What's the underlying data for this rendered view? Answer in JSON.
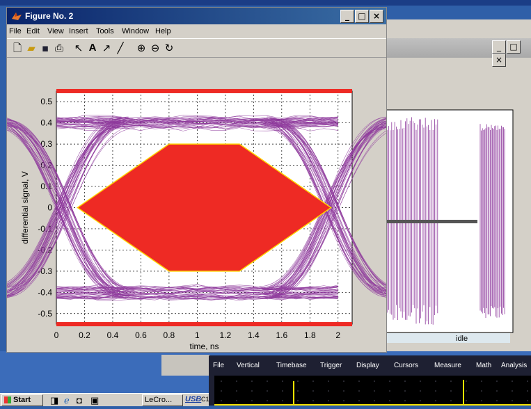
{
  "figure_window": {
    "title": "Figure No. 2",
    "menu": [
      "File",
      "Edit",
      "View",
      "Insert",
      "Tools",
      "Window",
      "Help"
    ],
    "toolbar_icons": [
      "new-file-icon",
      "open-folder-icon",
      "save-icon",
      "print-icon",
      "select-arrow-icon",
      "text-insert-icon",
      "arrow-insert-icon",
      "line-insert-icon",
      "zoom-in-icon",
      "zoom-out-icon",
      "rotate-icon"
    ]
  },
  "window_controls": {
    "minimize": "_",
    "maximize": "□",
    "close": "×"
  },
  "chart_data": {
    "type": "line",
    "title": "",
    "xlabel": "time, ns",
    "ylabel": "differential signal, V",
    "xlim": [
      0,
      2.1
    ],
    "ylim": [
      -0.55,
      0.55
    ],
    "x_ticks": [
      0,
      0.2,
      0.4,
      0.6,
      0.8,
      1,
      1.2,
      1.4,
      1.6,
      1.8,
      2
    ],
    "x_tick_labels": [
      "0",
      "0.2",
      "0.4",
      "0.6",
      "0.8",
      "1",
      "1.2",
      "1.4",
      "1.6",
      "1.8",
      "2"
    ],
    "y_ticks": [
      0.5,
      0.4,
      0.3,
      0.2,
      0.1,
      0,
      -0.1,
      -0.2,
      -0.3,
      -0.4,
      -0.5
    ],
    "y_tick_labels": [
      "0.5",
      "0.4",
      "0.3",
      "0.2",
      "0.1",
      "0",
      "-0.1",
      "-0.2",
      "-0.3",
      "-0.4",
      "-0.5"
    ],
    "grid": true,
    "mask_polygon": [
      [
        0.15,
        0
      ],
      [
        0.8,
        0.3
      ],
      [
        1.3,
        0.3
      ],
      [
        1.95,
        0
      ],
      [
        1.3,
        -0.3
      ],
      [
        0.8,
        -0.3
      ]
    ],
    "mask_bars": [
      0.56,
      -0.56
    ],
    "eye_levels": [
      0.4,
      -0.4
    ],
    "colors": {
      "trace": "#8e3a9c",
      "mask": "#ee2a24",
      "mask_edge": "#ffd200"
    }
  },
  "background_app": {
    "label_idle": "idle",
    "window_controls": [
      "_",
      "□",
      "×"
    ]
  },
  "scope_menu": [
    "File",
    "Vertical",
    "Timebase",
    "Trigger",
    "Display",
    "Cursors",
    "Measure",
    "Math",
    "Analysis"
  ],
  "taskbar": {
    "start_label": "Start",
    "items": [
      "LeCro...",
      "USB",
      "C1"
    ]
  }
}
